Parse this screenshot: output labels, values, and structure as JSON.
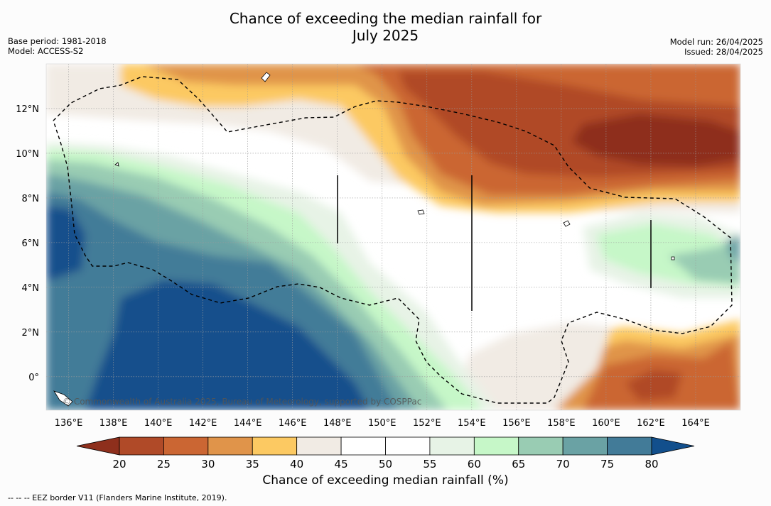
{
  "title": {
    "line1": "Chance of exceeding the median rainfall for",
    "line2": "July 2025"
  },
  "meta_left": {
    "base_period": "Base period: 1981-2018",
    "model": "Model: ACCESS-S2"
  },
  "meta_right": {
    "model_run": "Model run: 26/04/2025",
    "issued": "Issued: 28/04/2025"
  },
  "map": {
    "lon_labels": [
      "136°E",
      "138°E",
      "140°E",
      "142°E",
      "144°E",
      "146°E",
      "148°E",
      "150°E",
      "152°E",
      "154°E",
      "156°E",
      "158°E",
      "160°E",
      "162°E",
      "164°E"
    ],
    "lon_values": [
      136,
      138,
      140,
      142,
      144,
      146,
      148,
      150,
      152,
      154,
      156,
      158,
      160,
      162,
      164
    ],
    "lat_labels": [
      "12°N",
      "10°N",
      "8°N",
      "6°N",
      "4°N",
      "2°N",
      "0°"
    ],
    "lat_values": [
      12,
      10,
      8,
      6,
      4,
      2,
      0
    ],
    "lon_range": [
      135,
      166
    ],
    "lat_range": [
      -1.5,
      14
    ],
    "copyright": "© Commonwealth of Australia 2025, Bureau of Meteorology, supported by COSPPac"
  },
  "colorbar": {
    "ticks": [
      "20",
      "25",
      "30",
      "35",
      "40",
      "45",
      "50",
      "55",
      "60",
      "65",
      "70",
      "75",
      "80"
    ],
    "colors": [
      "#8e2f1c",
      "#b04a28",
      "#cb6633",
      "#e0944a",
      "#fcc962",
      "#f1ebe4",
      "#ffffff",
      "#ffffff",
      "#e7f3e6",
      "#c6f7c8",
      "#99ccb3",
      "#6aa2a4",
      "#427b98",
      "#124f8c"
    ],
    "title": "Chance of exceeding median rainfall (%)"
  },
  "footnote": "--  --  -- EEZ border V11 (Flanders Marine Institute, 2019)."
}
